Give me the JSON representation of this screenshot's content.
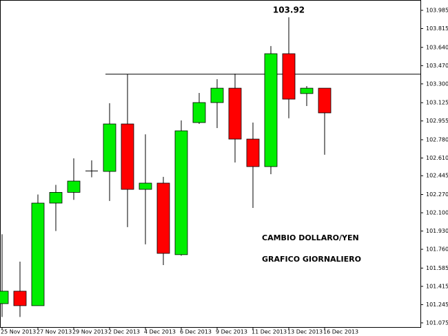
{
  "chart_data": {
    "type": "candlestick",
    "categories": [
      "25 Nov 2013",
      null,
      "27 Nov 2013",
      null,
      "29 Nov 2013",
      null,
      "2 Dec 2013",
      null,
      "4 Dec 2013",
      null,
      "6 Dec 2013",
      null,
      "9 Dec 2013",
      null,
      "11 Dec 2013",
      null,
      "13 Dec 2013",
      null,
      "16 Dec 2013"
    ],
    "open": [
      101.254,
      101.37,
      101.235,
      102.19,
      102.29,
      102.49,
      102.485,
      102.927,
      102.318,
      102.376,
      101.71,
      102.94,
      103.126,
      103.26,
      102.786,
      102.53,
      103.581,
      103.21,
      103.26
    ],
    "high": [
      101.9,
      101.645,
      102.27,
      102.36,
      102.607,
      102.588,
      103.12,
      103.389,
      102.83,
      102.434,
      102.96,
      103.216,
      103.344,
      103.395,
      102.94,
      103.652,
      103.92,
      103.28,
      103.26
    ],
    "low": [
      101.13,
      101.13,
      101.235,
      101.93,
      102.22,
      102.43,
      102.21,
      101.966,
      101.806,
      101.613,
      101.7,
      102.927,
      102.889,
      102.568,
      102.145,
      102.459,
      102.98,
      103.094,
      102.64
    ],
    "close": [
      101.37,
      101.235,
      102.19,
      102.29,
      102.395,
      102.49,
      102.927,
      102.318,
      102.376,
      101.722,
      102.863,
      103.126,
      103.26,
      102.786,
      102.53,
      103.581,
      103.158,
      103.26,
      103.03
    ],
    "up_color": "#00ee00",
    "down_color": "#ff0000",
    "ylim": [
      101.036,
      104.049
    ],
    "yticks": [
      103.985,
      103.815,
      {
        "value": 103.64,
        "label": "103.640"
      },
      {
        "value": 103.47,
        "label": "103.470"
      },
      {
        "value": 103.3,
        "label": "103.300"
      },
      103.125,
      102.955,
      {
        "value": 102.78,
        "label": "102.780"
      },
      {
        "value": 102.61,
        "label": "102.610"
      },
      102.445,
      {
        "value": 102.27,
        "label": "102.270"
      },
      {
        "value": 102.1,
        "label": "102.100"
      },
      {
        "value": 101.93,
        "label": "101.930"
      },
      {
        "value": 101.76,
        "label": "101.760"
      },
      101.585,
      101.415,
      101.245,
      101.075
    ],
    "hline": 103.39,
    "annotations": [
      {
        "text": "103.92",
        "x": "13 Dec 2013",
        "y": 103.92
      }
    ],
    "notes": [
      "CAMBIO DOLLARO/YEN",
      "GRAFICO GIORNALIERO"
    ]
  }
}
